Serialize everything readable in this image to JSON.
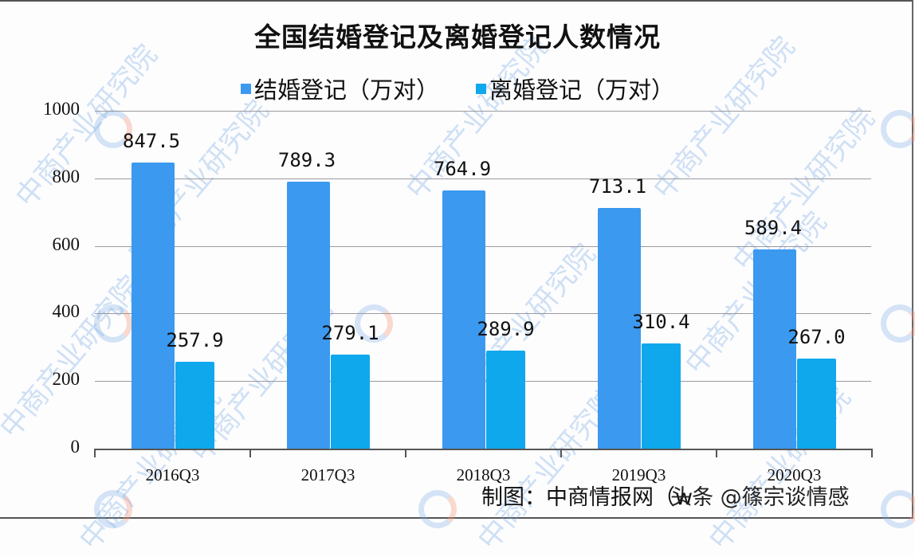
{
  "chart_data": {
    "type": "bar",
    "title": "全国结婚登记及离婚登记人数情况",
    "categories": [
      "2016Q3",
      "2017Q3",
      "2018Q3",
      "2019Q3",
      "2020Q3"
    ],
    "series": [
      {
        "name": "结婚登记（万对）",
        "color": "#3b99ef",
        "values": [
          847.5,
          789.3,
          764.9,
          713.1,
          589.4
        ],
        "labels": [
          "847.5",
          "789.3",
          "764.9",
          "713.1",
          "589.4"
        ]
      },
      {
        "name": "离婚登记（万对）",
        "color": "#0fa8ec",
        "values": [
          257.9,
          279.1,
          289.9,
          310.4,
          267.0
        ],
        "labels": [
          "257.9",
          "279.1",
          "289.9",
          "310.4",
          "267.0"
        ]
      }
    ],
    "xlabel": "",
    "ylabel": "",
    "ylim": [
      0,
      1000
    ],
    "yticks": [
      "0",
      "200",
      "400",
      "600",
      "800",
      "1000"
    ],
    "grid": true,
    "legend_position": "top"
  },
  "source": "制图：中商情报网（w",
  "overlay_watermark": "头条 @篠宗谈情感",
  "watermark_text": "中商产业研究院"
}
